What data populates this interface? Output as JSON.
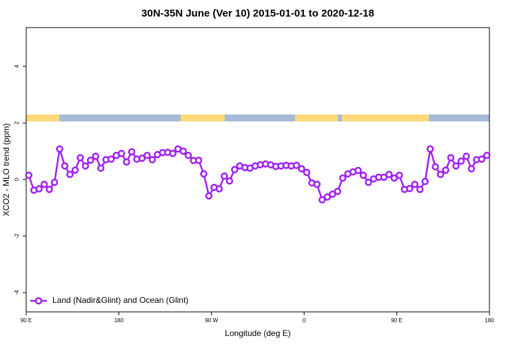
{
  "chart_data": {
    "type": "line",
    "title": "30N-35N June (Ver 10)   2015-01-01 to 2020-12-18",
    "xlabel": "Longitude (deg E)",
    "ylabel": "XCO2 - MLO trend (ppm)",
    "legend": "bottom-left",
    "xlim": [
      90,
      540
    ],
    "xticks": [
      {
        "value": 90,
        "label": "90 E"
      },
      180,
      {
        "value": 270,
        "label": "90 W"
      },
      {
        "value": 360,
        "label": "0"
      },
      {
        "value": 450,
        "label": "90 E"
      },
      {
        "value": 540,
        "label": "180"
      }
    ],
    "ylim": [
      -4.68,
      5.37
    ],
    "yticks": [
      -4,
      -2,
      0,
      2,
      4
    ],
    "x": [
      92.5,
      97.5,
      102.5,
      107.5,
      112.5,
      117.5,
      122.5,
      127.5,
      132.5,
      137.5,
      142.5,
      147.5,
      152.5,
      157.5,
      162.5,
      167.5,
      172.5,
      177.5,
      182.5,
      187.5,
      192.5,
      197.5,
      202.5,
      207.5,
      212.5,
      217.5,
      222.5,
      227.5,
      232.5,
      237.5,
      242.5,
      247.5,
      252.5,
      257.5,
      262.5,
      267.5,
      272.5,
      277.5,
      282.5,
      287.5,
      292.5,
      297.5,
      302.5,
      307.5,
      312.5,
      317.5,
      322.5,
      327.5,
      332.5,
      337.5,
      342.5,
      347.5,
      352.5,
      357.5,
      362.5,
      367.5,
      372.5,
      377.5,
      382.5,
      387.5,
      392.5,
      397.5,
      402.5,
      407.5,
      412.5,
      417.5,
      422.5,
      427.5,
      432.5,
      437.5,
      442.5,
      447.5,
      452.5,
      457.5,
      462.5,
      467.5,
      472.5,
      477.5,
      482.5,
      487.5,
      492.5,
      497.5,
      502.5,
      507.5,
      512.5,
      517.5,
      522.5,
      527.5,
      532.5,
      537.5
    ],
    "series": [
      {
        "name": "Land (Nadir&Glint) and Ocean (Glint)",
        "color": "#a020f0",
        "values": [
          0.15,
          -0.38,
          -0.33,
          -0.17,
          -0.35,
          -0.1,
          1.08,
          0.48,
          0.18,
          0.33,
          0.77,
          0.48,
          0.68,
          0.82,
          0.4,
          0.7,
          0.72,
          0.85,
          0.92,
          0.62,
          0.98,
          0.72,
          0.75,
          0.85,
          0.7,
          0.88,
          0.95,
          0.96,
          0.92,
          1.08,
          1.0,
          0.85,
          0.67,
          0.68,
          0.2,
          -0.58,
          -0.28,
          -0.33,
          0.12,
          -0.05,
          0.35,
          0.48,
          0.42,
          0.4,
          0.48,
          0.52,
          0.55,
          0.52,
          0.46,
          0.48,
          0.5,
          0.48,
          0.5,
          0.38,
          0.25,
          -0.12,
          -0.17,
          -0.72,
          -0.62,
          -0.52,
          -0.42,
          0.05,
          0.2,
          0.27,
          0.32,
          0.15,
          -0.1,
          0.02,
          0.08,
          0.08,
          0.18,
          0.05,
          0.15,
          -0.35,
          -0.32,
          -0.17,
          -0.35,
          -0.07,
          1.08,
          0.45,
          0.18,
          0.33,
          0.77,
          0.48,
          0.65,
          0.82,
          0.38,
          0.7,
          0.72,
          0.85
        ]
      }
    ]
  }
}
